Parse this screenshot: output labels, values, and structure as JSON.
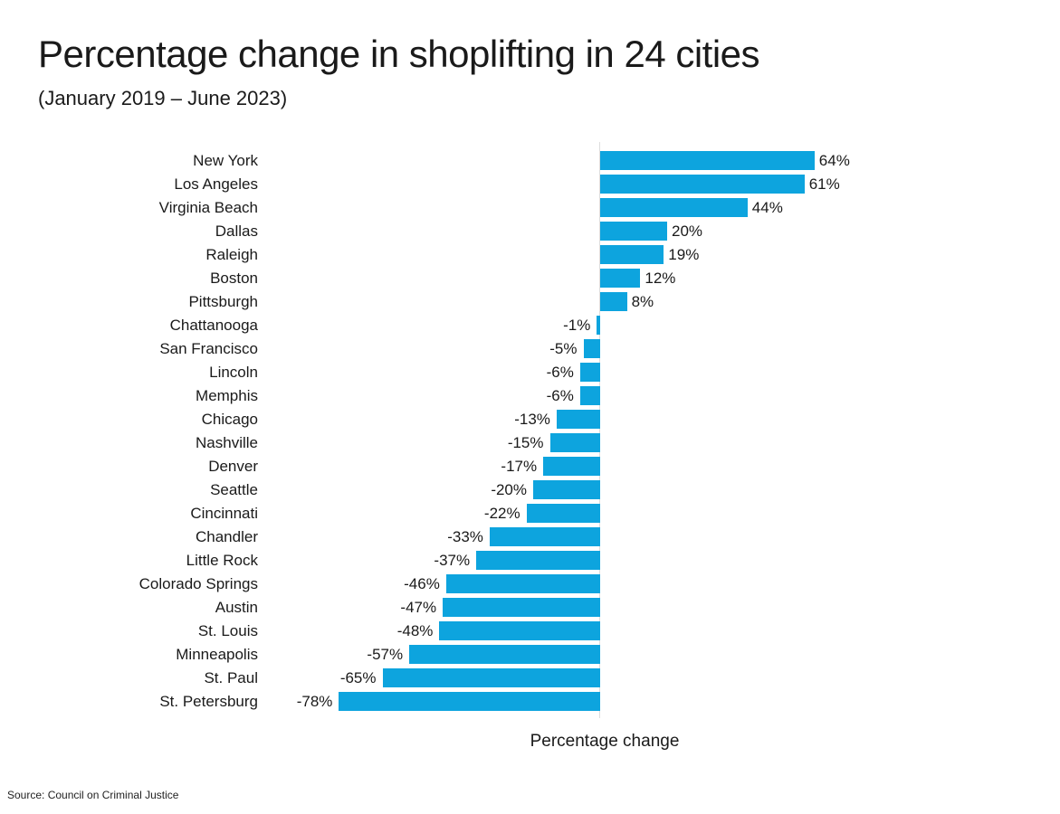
{
  "header": {
    "title": "Percentage change in shoplifting in 24 cities",
    "subtitle": "(January 2019 – June 2023)"
  },
  "footer": {
    "source": "Source: Council on Criminal Justice"
  },
  "chart_data": {
    "type": "bar",
    "orientation": "horizontal",
    "title": "Percentage change in shoplifting in 24 cities",
    "subtitle": "(January 2019 – June 2023)",
    "xlabel": "Percentage change",
    "categories": [
      "New York",
      "Los Angeles",
      "Virginia Beach",
      "Dallas",
      "Raleigh",
      "Boston",
      "Pittsburgh",
      "Chattanooga",
      "San Francisco",
      "Lincoln",
      "Memphis",
      "Chicago",
      "Nashville",
      "Denver",
      "Seattle",
      "Cincinnati",
      "Chandler",
      "Little Rock",
      "Colorado Springs",
      "Austin",
      "St. Louis",
      "Minneapolis",
      "St. Paul",
      "St. Petersburg"
    ],
    "values": [
      64,
      61,
      44,
      20,
      19,
      12,
      8,
      -1,
      -5,
      -6,
      -6,
      -13,
      -15,
      -17,
      -20,
      -22,
      -33,
      -37,
      -46,
      -47,
      -48,
      -57,
      -65,
      -78
    ],
    "unit": "%",
    "xlim": [
      -85,
      70
    ],
    "grid": false,
    "legend": false,
    "sorted": "descending",
    "bar_color": "#0da4de",
    "axis_color": "#dddddd",
    "text_color": "#1a1a1a",
    "source": "Source: Council on Criminal Justice"
  }
}
